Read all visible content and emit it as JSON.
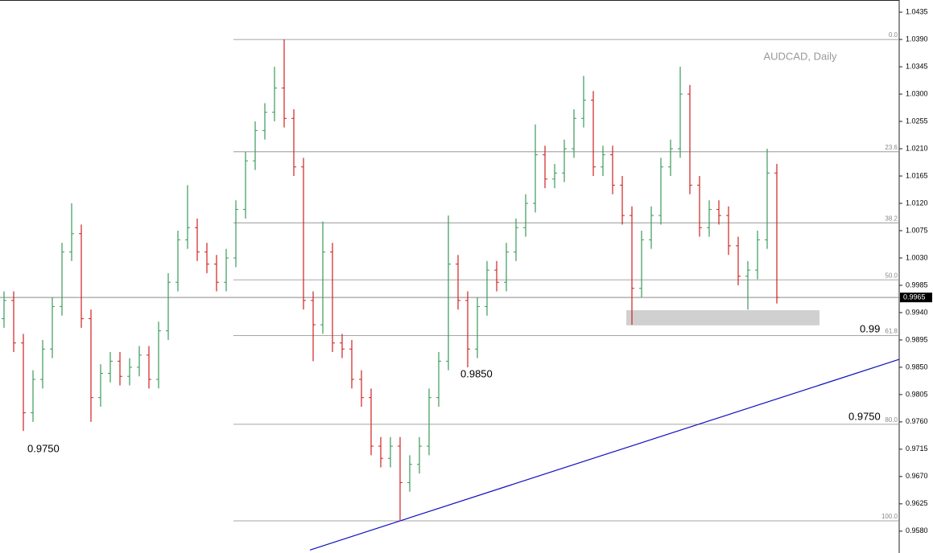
{
  "chart_data": {
    "type": "ohlc",
    "title": "AUDCAD, Daily",
    "up_color": "#3a9a5a",
    "down_color": "#d02020",
    "open": [
      0.993,
      0.996,
      0.989,
      0.9775,
      0.983,
      0.988,
      0.995,
      1.004,
      1.007,
      0.993,
      0.98,
      0.984,
      0.986,
      0.9835,
      0.985,
      0.987,
      0.983,
      0.991,
      0.999,
      1.006,
      1.008,
      1.004,
      1.002,
      0.999,
      1.003,
      1.011,
      1.019,
      1.024,
      1.027,
      1.031,
      1.026,
      1.018,
      0.996,
      0.992,
      1.004,
      0.989,
      0.988,
      0.983,
      0.98,
      0.972,
      0.97,
      0.972,
      0.966,
      0.969,
      0.972,
      0.98,
      0.986,
      1.002,
      0.996,
      0.988,
      0.995,
      1.001,
      0.999,
      1.004,
      1.008,
      1.012,
      1.02,
      1.016,
      1.017,
      1.021,
      1.026,
      1.029,
      1.018,
      1.02,
      1.015,
      1.01,
      0.998,
      1.006,
      1.01,
      1.018,
      1.021,
      1.03,
      1.015,
      1.008,
      1.011,
      1.01,
      1.005,
      1.0,
      1.001,
      1.006,
      1.017
    ],
    "high": [
      0.9975,
      0.9975,
      0.9905,
      0.9845,
      0.9895,
      0.9965,
      1.0055,
      1.012,
      1.0085,
      0.9945,
      0.9855,
      0.9875,
      0.9875,
      0.9865,
      0.9885,
      0.9885,
      0.9925,
      1.0005,
      1.0075,
      1.015,
      1.0095,
      1.0055,
      1.0035,
      1.0045,
      1.0125,
      1.0205,
      1.0255,
      1.0285,
      1.0345,
      1.039,
      1.0275,
      1.0195,
      0.9975,
      1.009,
      1.0055,
      0.9905,
      0.9895,
      0.9845,
      0.9815,
      0.9735,
      0.9735,
      0.9735,
      0.9705,
      0.9735,
      0.9815,
      0.9875,
      1.01,
      1.0035,
      0.9975,
      0.9965,
      1.0025,
      1.0025,
      1.0055,
      1.0095,
      1.0135,
      1.025,
      1.0215,
      1.0185,
      1.0225,
      1.0275,
      1.033,
      1.0305,
      1.0215,
      1.0215,
      1.0165,
      1.0115,
      1.0075,
      1.0115,
      1.0195,
      1.0225,
      1.0345,
      1.0315,
      1.0165,
      1.0125,
      1.0125,
      1.0115,
      1.0065,
      1.0025,
      1.0075,
      1.021,
      1.0185
    ],
    "low": [
      0.9915,
      0.9875,
      0.9745,
      0.976,
      0.9815,
      0.9865,
      0.9935,
      1.0025,
      0.9915,
      0.976,
      0.9785,
      0.9825,
      0.982,
      0.982,
      0.9835,
      0.9815,
      0.9815,
      0.9895,
      0.9975,
      1.0045,
      1.0025,
      1.0005,
      0.9975,
      0.9975,
      1.0015,
      1.0095,
      1.0175,
      1.0225,
      1.0255,
      1.0245,
      1.0165,
      0.9945,
      0.986,
      0.9905,
      0.9875,
      0.9865,
      0.9815,
      0.9785,
      0.9705,
      0.9685,
      0.9685,
      0.9597,
      0.9645,
      0.9675,
      0.9705,
      0.9785,
      0.9845,
      0.9945,
      0.985,
      0.9865,
      0.9935,
      0.9975,
      0.9975,
      1.0025,
      1.0065,
      1.0105,
      1.0145,
      1.0145,
      1.0155,
      1.0195,
      1.0245,
      1.0165,
      1.0165,
      1.0135,
      1.0085,
      0.992,
      0.9965,
      1.0045,
      1.0085,
      1.0165,
      1.0195,
      1.0135,
      1.0065,
      1.0065,
      1.0085,
      1.0035,
      0.9985,
      0.9945,
      0.9995,
      1.0045,
      0.9955
    ],
    "close": [
      0.996,
      0.989,
      0.9775,
      0.983,
      0.988,
      0.995,
      1.004,
      1.007,
      0.993,
      0.98,
      0.984,
      0.986,
      0.9835,
      0.985,
      0.987,
      0.983,
      0.991,
      0.999,
      1.006,
      1.008,
      1.004,
      1.002,
      0.999,
      1.003,
      1.011,
      1.019,
      1.024,
      1.027,
      1.031,
      1.026,
      1.018,
      0.996,
      0.992,
      1.004,
      0.989,
      0.988,
      0.983,
      0.98,
      0.972,
      0.97,
      0.972,
      0.966,
      0.969,
      0.972,
      0.98,
      0.986,
      1.002,
      0.996,
      0.988,
      0.995,
      1.001,
      0.999,
      1.004,
      1.008,
      1.012,
      1.02,
      1.016,
      1.017,
      1.021,
      1.026,
      1.029,
      1.018,
      1.02,
      1.015,
      1.01,
      0.998,
      1.006,
      1.01,
      1.018,
      1.021,
      1.03,
      1.015,
      1.008,
      1.011,
      1.01,
      1.005,
      1.0,
      1.001,
      1.006,
      1.017,
      0.9965
    ],
    "ylim": [
      0.9544,
      1.0455
    ],
    "yticks": [
      1.0435,
      {
        "value": 1.039,
        "label": "1.0390"
      },
      1.0345,
      {
        "value": 1.03,
        "label": "1.0300"
      },
      1.0255,
      {
        "value": 1.021,
        "label": "1.0210"
      },
      1.0165,
      {
        "value": 1.012,
        "label": "1.0120"
      },
      1.0075,
      {
        "value": 1.003,
        "label": "1.0030"
      },
      0.9985,
      {
        "value": 0.994,
        "label": "0.9940"
      },
      0.9895,
      {
        "value": 0.985,
        "label": "0.9850"
      },
      0.9805,
      {
        "value": 0.976,
        "label": "0.9760"
      },
      0.9715,
      {
        "value": 0.967,
        "label": "0.9670"
      },
      0.9625,
      {
        "value": 0.958,
        "label": "0.9580"
      }
    ],
    "current_price": 0.9965,
    "fibonacci": [
      {
        "label": "0.0",
        "value": 1.039
      },
      {
        "label": "23.6",
        "value": 1.0205
      },
      {
        "label": "38.2",
        "value": 1.0088
      },
      {
        "label": "50.0",
        "value": 0.9994
      },
      {
        "label": "61.8",
        "value": 0.9902
      },
      {
        "label": "80.0",
        "value": 0.9756
      },
      {
        "label": "100.0",
        "value": 0.9597
      }
    ],
    "zone": [
      0.9919,
      0.9944
    ],
    "trendline": [
      0.9597,
      0.9863
    ],
    "annotations": [
      "0.9750",
      "0.9850",
      "0.99",
      "0.9750"
    ]
  }
}
